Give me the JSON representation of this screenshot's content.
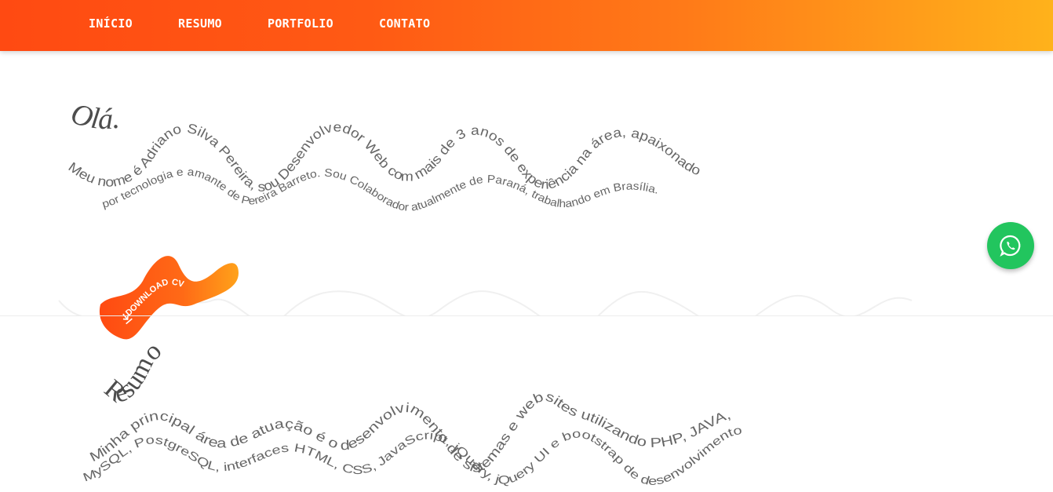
{
  "nav": {
    "items": [
      {
        "label": "INÍCIO"
      },
      {
        "label": "RESUMO"
      },
      {
        "label": "PORTFOLIO"
      },
      {
        "label": "CONTATO"
      }
    ]
  },
  "intro": {
    "greeting": "Olá.",
    "line1": "Meu nome é Adriano Silva Pereira, sou Desenvolvedor Web com mais de 3 anos de experiência na área, apaixonado",
    "line2": "por tecnologia e amante de Pereira Barreto. Sou Colaborador atualmente de Paraná, trabalhando em Brasília.",
    "download_label": "DOWNLOAD CV"
  },
  "resumo": {
    "title": "Resumo",
    "line1": "Minha principal área de atuação é o desenvolvimento de sistemas e websites utilizando PHP, JAVA,",
    "line2": "MySQL, PostgreSQL, interfaces HTML, CSS, JavaScript, jQuery, jQuery UI e bootstrap de desenvolvimento"
  },
  "floating": {
    "whatsapp_icon": "whatsapp-icon"
  },
  "colors": {
    "header_start": "#ff4a12",
    "header_end": "#ffb21b",
    "accent": "#ff5a14",
    "whatsapp": "#22c55e",
    "text": "#666666"
  }
}
